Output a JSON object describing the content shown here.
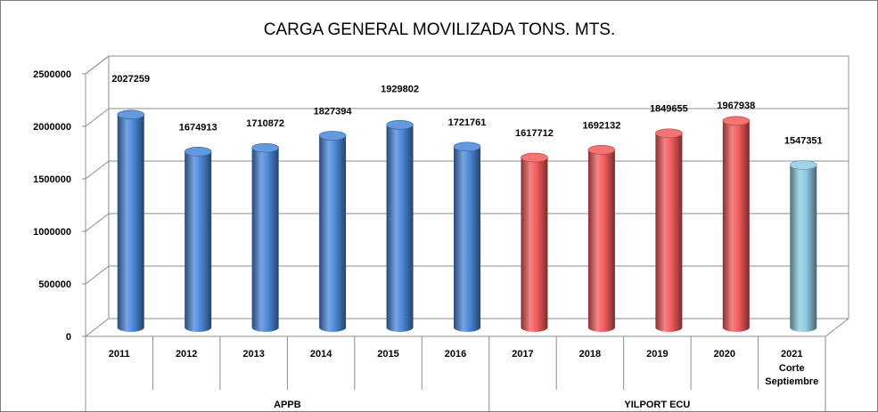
{
  "chart_data": {
    "type": "bar",
    "style": "3d-cylinder",
    "title": "CARGA GENERAL MOVILIZADA TONS. MTS.",
    "xlabel": "",
    "ylabel": "",
    "ylim": [
      0,
      2500000
    ],
    "y_ticks": [
      "0",
      "500000",
      "1000000",
      "1500000",
      "2000000",
      "2500000"
    ],
    "grid": true,
    "legend": "none",
    "categories": [
      {
        "label": "2011",
        "sub": []
      },
      {
        "label": "2012",
        "sub": []
      },
      {
        "label": "2013",
        "sub": []
      },
      {
        "label": "2014",
        "sub": []
      },
      {
        "label": "2015",
        "sub": []
      },
      {
        "label": "2016",
        "sub": []
      },
      {
        "label": "2017",
        "sub": []
      },
      {
        "label": "2018",
        "sub": []
      },
      {
        "label": "2019",
        "sub": []
      },
      {
        "label": "2020",
        "sub": []
      },
      {
        "label": "2021",
        "sub": [
          "Corte",
          "Septiembre"
        ]
      }
    ],
    "values": [
      2027259,
      1674913,
      1710872,
      1827394,
      1929802,
      1721761,
      1617712,
      1692132,
      1849655,
      1967938,
      1547351
    ],
    "value_labels": [
      "2027259",
      "1674913",
      "1710872",
      "1827394",
      "1929802",
      "1721761",
      "1617712",
      "1692132",
      "1849655",
      "1967938",
      "1547351"
    ],
    "bar_colors": [
      "#4a87d8",
      "#4a87d8",
      "#4a87d8",
      "#4a87d8",
      "#4a87d8",
      "#4a87d8",
      "#f25a5a",
      "#f25a5a",
      "#f25a5a",
      "#f25a5a",
      "#8ecbe0"
    ],
    "groups": [
      {
        "label": "APPB",
        "start": 0,
        "end": 5
      },
      {
        "label": "YILPORT ECU",
        "start": 6,
        "end": 10
      }
    ]
  }
}
